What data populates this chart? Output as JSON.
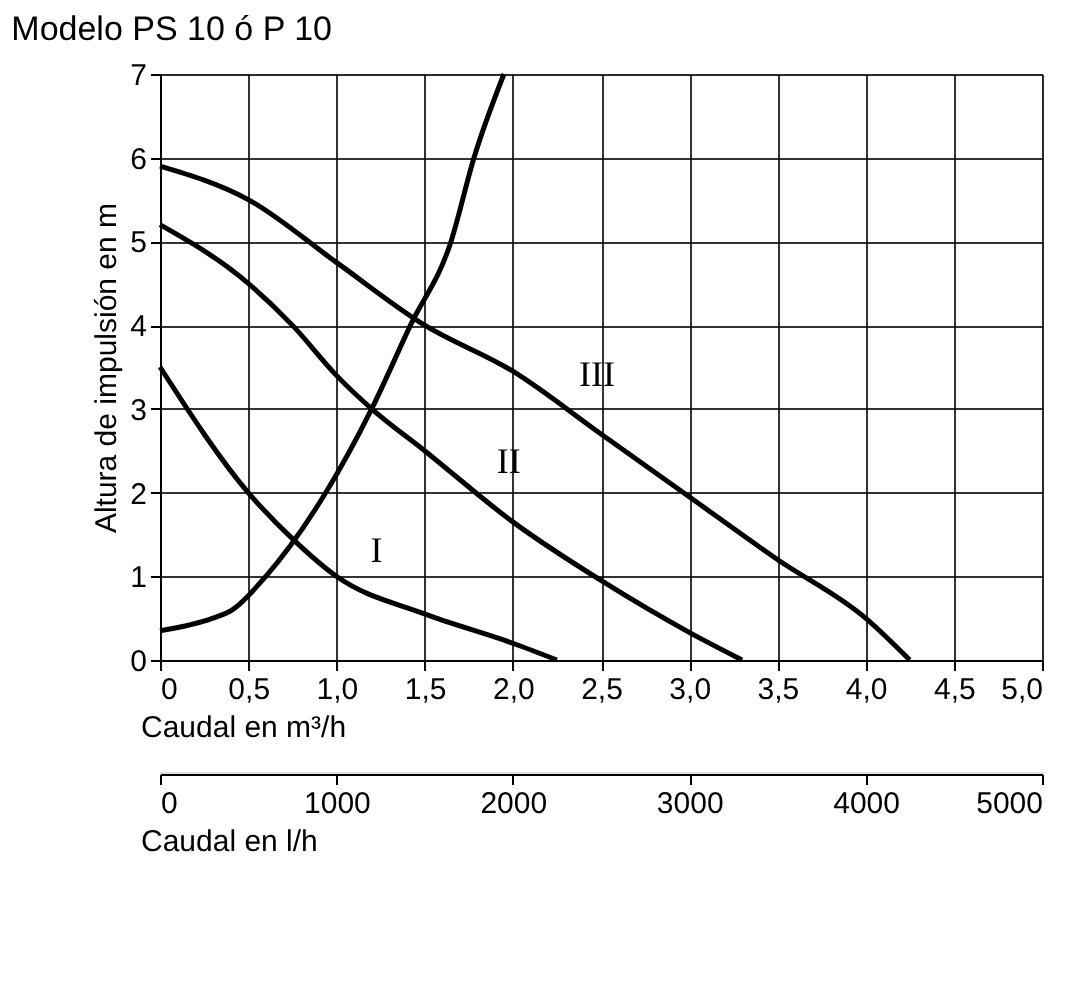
{
  "chart_data": {
    "type": "line",
    "title": "Modelo PS 10 ó P 10",
    "xlabel": "Caudal en m³/h",
    "ylabel": "Altura de impulsión en m",
    "x2label": "Caudal en l/h",
    "xlim": [
      0,
      5
    ],
    "xticks": [
      0,
      {
        "value": 0.5,
        "label": "0,5"
      },
      {
        "value": 1,
        "label": "1,0"
      },
      {
        "value": 1.5,
        "label": "1,5"
      },
      {
        "value": 2,
        "label": "2,0"
      },
      {
        "value": 2.5,
        "label": "2,5"
      },
      {
        "value": 3,
        "label": "3,0"
      },
      {
        "value": 3.5,
        "label": "3,5"
      },
      {
        "value": 4,
        "label": "4,0"
      },
      {
        "value": 4.5,
        "label": "4,5"
      },
      {
        "value": 5,
        "label": "5,0"
      }
    ],
    "ylim": [
      0,
      7
    ],
    "yticks": [
      0,
      1,
      2,
      3,
      4,
      5,
      6,
      7
    ],
    "x2lim": [
      0,
      5000
    ],
    "x2ticks": [
      0,
      1000,
      2000,
      3000,
      4000,
      5000
    ],
    "grid": true,
    "marker": "none",
    "line_style": "solid",
    "legend": false,
    "series": [
      {
        "color": "#000000",
        "x": [
          0,
          0.5,
          0.75,
          1.0,
          1.5,
          2.0,
          2.25
        ],
        "values": [
          3.5,
          2.0,
          1.45,
          1.0,
          0.55,
          0.2,
          0
        ]
      },
      {
        "color": "#000000",
        "x": [
          0,
          0.5,
          0.75,
          1.0,
          1.2,
          1.5,
          2.0,
          2.5,
          3.0,
          3.3
        ],
        "values": [
          5.2,
          4.5,
          4.0,
          3.4,
          3.0,
          2.5,
          1.65,
          0.95,
          0.33,
          0
        ]
      },
      {
        "color": "#000000",
        "x": [
          0,
          0.5,
          1.0,
          1.5,
          2.0,
          2.5,
          3.0,
          3.5,
          4.0,
          4.25
        ],
        "values": [
          5.9,
          5.5,
          4.75,
          4.0,
          3.45,
          2.7,
          1.95,
          1.2,
          0.5,
          0
        ]
      },
      {
        "color": "#000000",
        "x": [
          0,
          0.3,
          0.41,
          0.6,
          0.94,
          1.2,
          1.42,
          1.65,
          1.78,
          1.95
        ],
        "values": [
          0.35,
          0.5,
          0.6,
          1.0,
          2.0,
          3.0,
          4.0,
          5.0,
          6.0,
          7.0
        ]
      }
    ],
    "annotations": [
      {
        "text": "I",
        "x": 1.0,
        "y": 1.0
      },
      {
        "text": "II",
        "x": 1.75,
        "y": 2.07
      },
      {
        "text": "III",
        "x": 2.25,
        "y": 3.1
      }
    ]
  }
}
